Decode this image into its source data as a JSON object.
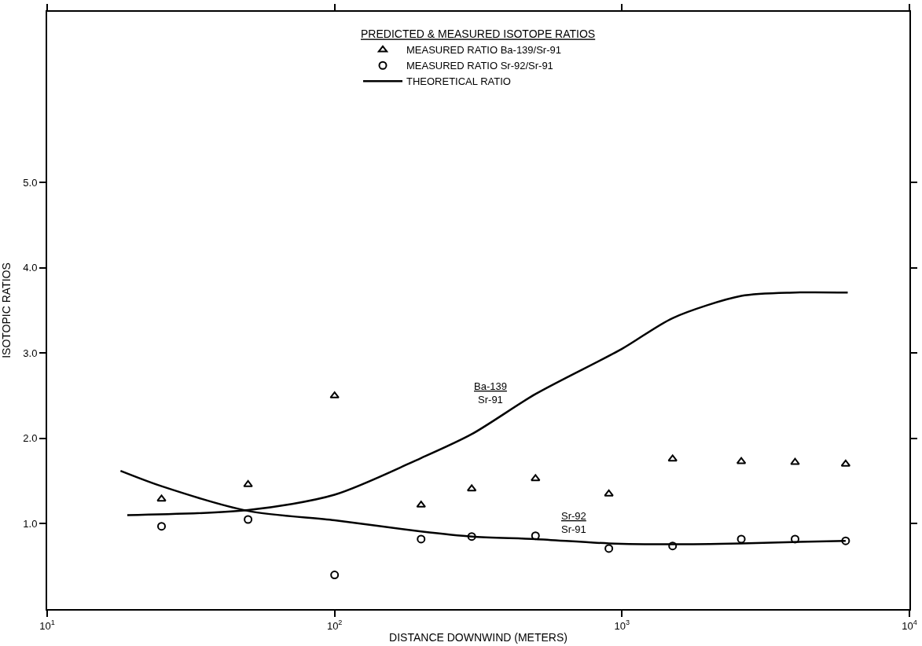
{
  "chart_data": {
    "type": "scatter",
    "xlabel": "DISTANCE DOWNWIND (METERS)",
    "ylabel": "ISOTOPIC RATIOS",
    "legend_title": "PREDICTED & MEASURED ISOTOPE RATIOS",
    "legend": "top",
    "grid": false,
    "log": "x",
    "xlim": [
      10,
      10000
    ],
    "xticks": [
      {
        "value": 10,
        "label": "10$^{1}$"
      },
      {
        "value": 100,
        "label": "10$^{2}$"
      },
      {
        "value": 1000,
        "label": "10$^{3}$"
      },
      {
        "value": 10000,
        "label": "10$^{4}$"
      }
    ],
    "ylim": [
      0,
      7
    ],
    "yticks": [
      {
        "value": 1,
        "label": "1.0"
      },
      {
        "value": 2,
        "label": "2.0"
      },
      {
        "value": 3,
        "label": "3.0"
      },
      {
        "value": 4,
        "label": "4.0"
      },
      {
        "value": 5,
        "label": "5.0"
      }
    ],
    "series": [
      {
        "name": "MEASURED RATIO Ba-139/Sr-91",
        "marker": "triangle",
        "color": "#000000",
        "x": [
          25,
          50,
          100,
          200,
          300,
          500,
          900,
          1500,
          2600,
          4000,
          6000
        ],
        "values": [
          1.29,
          1.46,
          2.5,
          1.22,
          1.41,
          1.53,
          1.35,
          1.76,
          1.73,
          1.72,
          1.7
        ]
      },
      {
        "name": "MEASURED RATIO Sr-92/Sr-91",
        "marker": "circle",
        "color": "#000000",
        "x": [
          25,
          50,
          100,
          200,
          300,
          500,
          900,
          1500,
          2600,
          4000,
          6000
        ],
        "values": [
          0.97,
          1.05,
          0.4,
          0.82,
          0.85,
          0.86,
          0.71,
          0.74,
          0.82,
          0.82,
          0.8
        ]
      },
      {
        "name": "THEORETICAL RATIO",
        "type": "line",
        "line_style": "solid",
        "color": "#000000",
        "x": [
          19,
          50,
          100,
          200,
          300,
          500,
          1000,
          1500,
          2600,
          4000,
          6100
        ],
        "values": [
          1.1,
          1.16,
          1.34,
          1.77,
          2.05,
          2.52,
          3.05,
          3.41,
          3.67,
          3.71,
          3.71
        ]
      },
      {
        "type": "line",
        "line_style": "solid",
        "color": "#000000",
        "x": [
          18,
          25,
          50,
          100,
          200,
          300,
          500,
          900,
          1500,
          2600,
          6000
        ],
        "values": [
          1.62,
          1.44,
          1.15,
          1.04,
          0.91,
          0.85,
          0.82,
          0.77,
          0.76,
          0.77,
          0.8
        ]
      }
    ],
    "annotations": [
      "Ba-139\nSr-91",
      "Sr-92\nSr-91"
    ]
  }
}
